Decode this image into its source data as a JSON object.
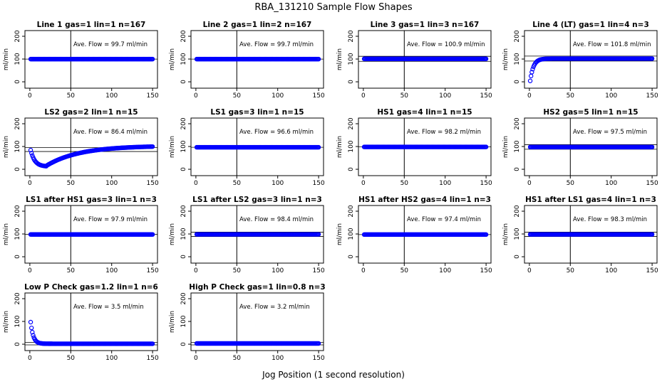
{
  "figure": {
    "title": "RBA_131210  Sample Flow Shapes",
    "xlabel": "Jog Position (1 second resolution)"
  },
  "chart_data": [
    {
      "type": "scatter",
      "title": "Line 1 gas=1 lin=1 n=167",
      "ylabel": "ml/min",
      "annotation": "Ave. Flow = 99.7  ml/min",
      "xlim": [
        0,
        150
      ],
      "ylim": [
        0,
        200
      ],
      "xticks": [
        0,
        50,
        100,
        150
      ],
      "yticks": [
        0,
        100,
        200
      ],
      "vline": 50,
      "hlines": [
        99.7
      ],
      "marker_color": "#0000ff",
      "profile": "flat",
      "avg": 99.7
    },
    {
      "type": "scatter",
      "title": "Line 2 gas=1 lin=2 n=167",
      "ylabel": "ml/min",
      "annotation": "Ave. Flow = 99.7  ml/min",
      "xlim": [
        0,
        150
      ],
      "ylim": [
        0,
        200
      ],
      "xticks": [
        0,
        50,
        100,
        150
      ],
      "yticks": [
        0,
        100,
        200
      ],
      "vline": 50,
      "hlines": [
        99.7
      ],
      "marker_color": "#0000ff",
      "profile": "flat",
      "avg": 99.7
    },
    {
      "type": "scatter",
      "title": "Line 3 gas=1 lin=3 n=167",
      "ylabel": "ml/min",
      "annotation": "Ave. Flow = 100.9  ml/min",
      "xlim": [
        0,
        150
      ],
      "ylim": [
        0,
        200
      ],
      "xticks": [
        0,
        50,
        100,
        150
      ],
      "yticks": [
        0,
        100,
        200
      ],
      "vline": 50,
      "hlines": [
        90,
        112
      ],
      "marker_color": "#0000ff",
      "profile": "flat",
      "avg": 100.9
    },
    {
      "type": "scatter",
      "title": "Line 4 (LT) gas=1 lin=4 n=3",
      "ylabel": "ml/min",
      "annotation": "Ave. Flow = 101.8  ml/min",
      "xlim": [
        0,
        150
      ],
      "ylim": [
        0,
        200
      ],
      "xticks": [
        0,
        50,
        100,
        150
      ],
      "yticks": [
        0,
        100,
        200
      ],
      "vline": 50,
      "hlines": [
        91,
        113
      ],
      "marker_color": "#0000ff",
      "profile": "rise",
      "avg": 101.8
    },
    {
      "type": "scatter",
      "title": "LS2 gas=2 lin=1 n=15",
      "ylabel": "ml/min",
      "annotation": "Ave. Flow = 86.4  ml/min",
      "xlim": [
        0,
        150
      ],
      "ylim": [
        0,
        200
      ],
      "xticks": [
        0,
        50,
        100,
        150
      ],
      "yticks": [
        0,
        100,
        200
      ],
      "vline": 50,
      "hlines": [
        78,
        95
      ],
      "marker_color": "#0000ff",
      "profile": "dip",
      "avg": 86.4
    },
    {
      "type": "scatter",
      "title": "LS1 gas=3 lin=1 n=15",
      "ylabel": "ml/min",
      "annotation": "Ave. Flow = 96.6  ml/min",
      "xlim": [
        0,
        150
      ],
      "ylim": [
        0,
        200
      ],
      "xticks": [
        0,
        50,
        100,
        150
      ],
      "yticks": [
        0,
        100,
        200
      ],
      "vline": 50,
      "hlines": [
        96.6
      ],
      "marker_color": "#0000ff",
      "profile": "flat",
      "avg": 96.6
    },
    {
      "type": "scatter",
      "title": "HS1 gas=4 lin=1 n=15",
      "ylabel": "ml/min",
      "annotation": "Ave. Flow = 98.2  ml/min",
      "xlim": [
        0,
        150
      ],
      "ylim": [
        0,
        200
      ],
      "xticks": [
        0,
        50,
        100,
        150
      ],
      "yticks": [
        0,
        100,
        200
      ],
      "vline": 50,
      "hlines": [
        98.2
      ],
      "marker_color": "#0000ff",
      "profile": "flat",
      "avg": 98.2
    },
    {
      "type": "scatter",
      "title": "HS2 gas=5 lin=1 n=15",
      "ylabel": "ml/min",
      "annotation": "Ave. Flow = 97.5  ml/min",
      "xlim": [
        0,
        150
      ],
      "ylim": [
        0,
        200
      ],
      "xticks": [
        0,
        50,
        100,
        150
      ],
      "yticks": [
        0,
        100,
        200
      ],
      "vline": 50,
      "hlines": [
        88,
        108
      ],
      "marker_color": "#0000ff",
      "profile": "flat",
      "avg": 97.5
    },
    {
      "type": "scatter",
      "title": "LS1 after HS1 gas=3 lin=1 n=3",
      "ylabel": "ml/min",
      "annotation": "Ave. Flow = 97.9  ml/min",
      "xlim": [
        0,
        150
      ],
      "ylim": [
        0,
        200
      ],
      "xticks": [
        0,
        50,
        100,
        150
      ],
      "yticks": [
        0,
        100,
        200
      ],
      "vline": 50,
      "hlines": [
        97.9
      ],
      "marker_color": "#0000ff",
      "profile": "flat",
      "avg": 97.9
    },
    {
      "type": "scatter",
      "title": "LS1 after LS2 gas=3 lin=1 n=3",
      "ylabel": "ml/min",
      "annotation": "Ave. Flow = 98.4  ml/min",
      "xlim": [
        0,
        150
      ],
      "ylim": [
        0,
        200
      ],
      "xticks": [
        0,
        50,
        100,
        150
      ],
      "yticks": [
        0,
        100,
        200
      ],
      "vline": 50,
      "hlines": [
        89,
        108
      ],
      "marker_color": "#0000ff",
      "profile": "flat",
      "avg": 98.4
    },
    {
      "type": "scatter",
      "title": "HS1 after HS2 gas=4 lin=1 n=3",
      "ylabel": "ml/min",
      "annotation": "Ave. Flow = 97.4  ml/min",
      "xlim": [
        0,
        150
      ],
      "ylim": [
        0,
        200
      ],
      "xticks": [
        0,
        50,
        100,
        150
      ],
      "yticks": [
        0,
        100,
        200
      ],
      "vline": 50,
      "hlines": [
        97.4
      ],
      "marker_color": "#0000ff",
      "profile": "flat",
      "avg": 97.4
    },
    {
      "type": "scatter",
      "title": "HS1 after LS1 gas=4 lin=1 n=3",
      "ylabel": "ml/min",
      "annotation": "Ave. Flow = 98.3  ml/min",
      "xlim": [
        0,
        150
      ],
      "ylim": [
        0,
        200
      ],
      "xticks": [
        0,
        50,
        100,
        150
      ],
      "yticks": [
        0,
        100,
        200
      ],
      "vline": 50,
      "hlines": [
        89,
        108
      ],
      "marker_color": "#0000ff",
      "profile": "flat",
      "avg": 98.3
    },
    {
      "type": "scatter",
      "title": "Low P Check gas=1.2 lin=1 n=6",
      "ylabel": "ml/min",
      "annotation": "Ave. Flow =  3.5  ml/min",
      "xlim": [
        0,
        150
      ],
      "ylim": [
        0,
        200
      ],
      "xticks": [
        0,
        50,
        100,
        150
      ],
      "yticks": [
        0,
        100,
        200
      ],
      "vline": 50,
      "hlines": [
        -3,
        8
      ],
      "marker_color": "#0000ff",
      "profile": "decay",
      "avg": 3.5
    },
    {
      "type": "scatter",
      "title": "High P Check gas=1 lin=0.8 n=3",
      "ylabel": "ml/min",
      "annotation": "Ave. Flow =  3.2  ml/min",
      "xlim": [
        0,
        150
      ],
      "ylim": [
        0,
        200
      ],
      "xticks": [
        0,
        50,
        100,
        150
      ],
      "yticks": [
        0,
        100,
        200
      ],
      "vline": 50,
      "hlines": [
        -3,
        8
      ],
      "marker_color": "#0000ff",
      "profile": "flat",
      "avg": 3.2
    }
  ]
}
